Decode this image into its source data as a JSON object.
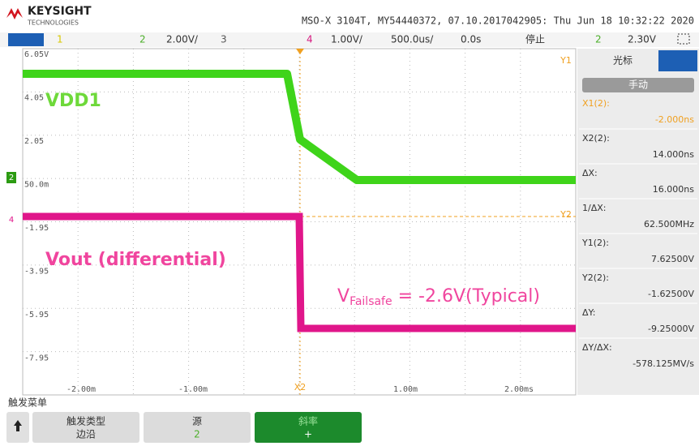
{
  "header": {
    "brand": "KEYSIGHT",
    "brand_sub": "TECHNOLOGIES",
    "info": "MSO-X 3104T, MY54440372, 07.10.2017042905: Thu Jun 18 10:32:22 2020"
  },
  "channel_bar": {
    "ch1": "1",
    "ch2": "2",
    "ch2_scale": "2.00V/",
    "ch3": "3",
    "ch4": "4",
    "ch4_scale": "1.00V/",
    "timebase": "500.0us/",
    "delay": "0.0s",
    "state": "停止",
    "trig_src": "2",
    "trig_level": "2.30V"
  },
  "plot": {
    "y_labels": [
      "6.05V",
      "4.05",
      "2.05",
      "50.0m",
      "-1.95",
      "-3.95",
      "-5.95",
      "-7.95"
    ],
    "x_labels": [
      "-2.00m",
      "-1.00m",
      "1.00m",
      "2.00ms"
    ],
    "markers": {
      "y1": "Y1",
      "y2": "Y2",
      "x2": "X2"
    },
    "channel_markers": {
      "ch2": "2",
      "ch4": "4"
    },
    "annotations": {
      "vdd": "VDD1",
      "vout": "Vout (differential)",
      "failsafe_v": "V",
      "failsafe_sub": "Failsafe",
      "failsafe_rest": " = -2.6V(Typical)"
    }
  },
  "cursor_panel": {
    "title": "光标",
    "mode": "手动",
    "readouts": [
      {
        "label": "X1(2):",
        "value": "-2.000ns"
      },
      {
        "label": "X2(2):",
        "value": "14.000ns"
      },
      {
        "label": "ΔX:",
        "value": "16.000ns"
      },
      {
        "label": "1/ΔX:",
        "value": "62.500MHz"
      },
      {
        "label": "Y1(2):",
        "value": "7.62500V"
      },
      {
        "label": "Y2(2):",
        "value": "-1.62500V"
      },
      {
        "label": "ΔY:",
        "value": "-9.25000V"
      },
      {
        "label": "ΔY/ΔX:",
        "value": "-578.125MV/s"
      }
    ]
  },
  "trigger_menu": {
    "title": "触发菜单",
    "buttons": [
      {
        "label": "触发类型",
        "value": "边沿"
      },
      {
        "label": "源",
        "value": "2"
      },
      {
        "label": "斜率",
        "value": "+"
      }
    ]
  }
}
